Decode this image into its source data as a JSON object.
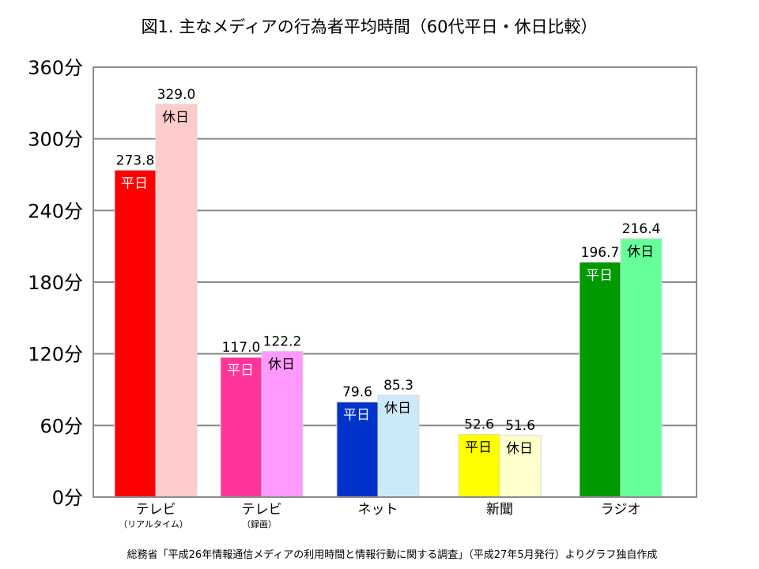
{
  "chart_data": {
    "type": "bar",
    "title": "図1.  主なメディアの行為者平均時間（60代平日・休日比較）",
    "source": "総務省「平成26年情報通信メディアの利用時間と情報行動に関する調査」（平成27年5月発行）よりグラフ独自作成",
    "xlabel": "",
    "ylabel": "",
    "ylim": [
      0,
      360
    ],
    "yticks": [
      "0分",
      "60分",
      "120分",
      "180分",
      "240分",
      "300分",
      "360分"
    ],
    "ytick_values": [
      0,
      60,
      120,
      180,
      240,
      300,
      360
    ],
    "grid": true,
    "categories": [
      {
        "name": "テレビ",
        "sub": "（リアルタイム）"
      },
      {
        "name": "テレビ",
        "sub": "（録画）"
      },
      {
        "name": "ネット",
        "sub": ""
      },
      {
        "name": "新聞",
        "sub": ""
      },
      {
        "name": "ラジオ",
        "sub": ""
      }
    ],
    "series": [
      {
        "name": "平日",
        "values": [
          273.8,
          117.0,
          79.6,
          52.6,
          196.7
        ],
        "labels": [
          "273.8",
          "117.0",
          "79.6",
          "52.6",
          "196.7"
        ],
        "colors": [
          "#ff0000",
          "#ff3399",
          "#0033cc",
          "#ffff00",
          "#009900"
        ],
        "text_colors": [
          "#ffffff",
          "#ffffff",
          "#ffffff",
          "#000000",
          "#ffffff"
        ]
      },
      {
        "name": "休日",
        "values": [
          329.0,
          122.2,
          85.3,
          51.6,
          216.4
        ],
        "labels": [
          "329.0",
          "122.2",
          "85.3",
          "51.6",
          "216.4"
        ],
        "colors": [
          "#ffcccc",
          "#ff99ff",
          "#cce9fa",
          "#ffffcc",
          "#66ff99"
        ],
        "text_colors": [
          "#000000",
          "#000000",
          "#000000",
          "#000000",
          "#000000"
        ]
      }
    ]
  }
}
